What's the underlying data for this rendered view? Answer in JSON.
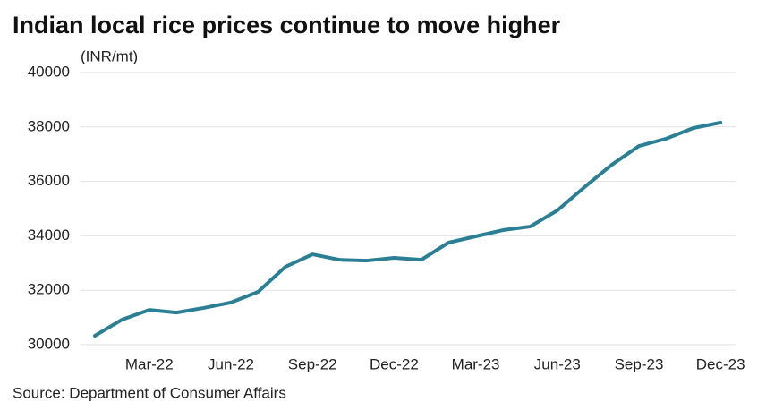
{
  "chart_data": {
    "type": "line",
    "title": "Indian local rice prices continue to move higher",
    "y_label": "(INR/mt)",
    "source": "Source: Department of Consumer Affairs",
    "categories": [
      null,
      null,
      "Mar-22",
      null,
      null,
      "Jun-22",
      null,
      null,
      "Sep-22",
      null,
      null,
      "Dec-22",
      null,
      null,
      "Mar-23",
      null,
      null,
      "Jun-23",
      null,
      null,
      "Sep-23",
      null,
      null,
      "Dec-23"
    ],
    "series": [
      {
        "name": "Rice price",
        "color": "#2b7f95",
        "values": [
          30330,
          30920,
          31280,
          31180,
          31350,
          31550,
          31940,
          32860,
          33320,
          33120,
          33090,
          33190,
          33120,
          33750,
          33980,
          34210,
          34340,
          34930,
          35790,
          36610,
          37300,
          37570,
          37960,
          38160
        ]
      }
    ],
    "ylim": [
      30000,
      40000
    ],
    "yticks": [
      30000,
      32000,
      34000,
      36000,
      38000,
      40000
    ],
    "grid": true
  }
}
